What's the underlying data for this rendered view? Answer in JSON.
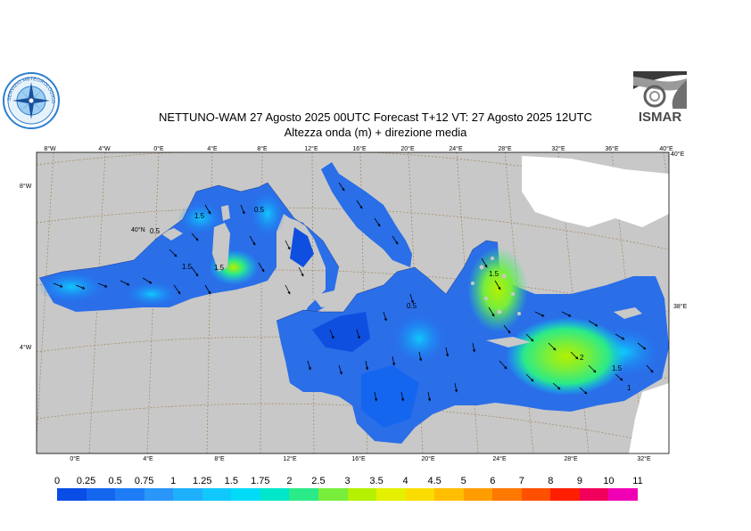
{
  "header": {
    "title_line1": "NETTUNO-WAM  27   Agosto  2025 00UTC Forecast T+12 VT: 27   Agosto  2025 12UTC",
    "title_line2": "Altezza onda (m) + direzione media"
  },
  "logos": {
    "left": {
      "icon": "compass-rose-seal-icon",
      "text": "SERVIZIO METEOROLOGICO"
    },
    "right": {
      "icon": "ismar-logo-icon",
      "text": "ISMAR"
    }
  },
  "map": {
    "top_axis_labels": [
      "8°W",
      "4°W",
      "0°E",
      "4°E",
      "8°E",
      "12°E",
      "16°E",
      "20°E",
      "24°E",
      "28°E",
      "32°E",
      "36°E",
      "40°E"
    ],
    "bottom_axis_labels": [
      "0°E",
      "4°E",
      "8°E",
      "12°E",
      "16°E",
      "20°E",
      "24°E",
      "28°E",
      "32°E"
    ],
    "left_axis_labels": [
      "8°W",
      "40°N",
      "4°W"
    ],
    "right_axis_labels": [
      "40°E",
      "38°E"
    ],
    "contour_labels": [
      "1.5",
      "0.5",
      "1.5",
      "0.5",
      "1.5",
      "0.5",
      "1.5",
      "2",
      "1.5",
      "1"
    ],
    "colors": {
      "land_gray": "#c8c8c8",
      "land_white": "#ffffff",
      "water_base": "#2a6ee8",
      "water_calm": "#0f4fe0"
    }
  },
  "colorbar": {
    "labels": [
      "0",
      "0.25",
      "0.5",
      "0.75",
      "1",
      "1.25",
      "1.5",
      "1.75",
      "2",
      "2.5",
      "3",
      "3.5",
      "4",
      "4.5",
      "5",
      "6",
      "7",
      "8",
      "9",
      "10",
      "11"
    ],
    "colors": [
      "#0a4ce6",
      "#1466ef",
      "#1e7df6",
      "#2a96fa",
      "#1fb0fb",
      "#10c8fc",
      "#00dcf8",
      "#00e6c8",
      "#2bea88",
      "#78ee3c",
      "#b4f000",
      "#e4f000",
      "#fadc00",
      "#ffbe00",
      "#ff9c00",
      "#ff7800",
      "#ff5000",
      "#ff1e00",
      "#f0005a",
      "#f000b4"
    ]
  }
}
